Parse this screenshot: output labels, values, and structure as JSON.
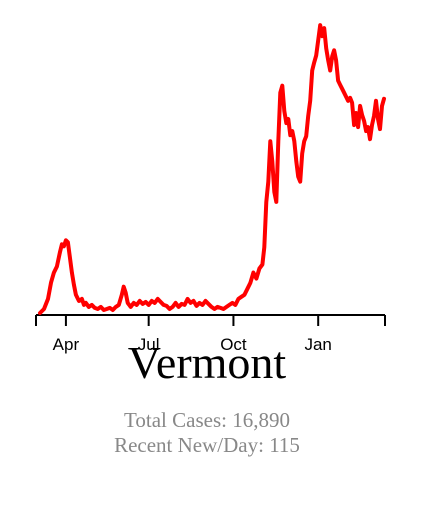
{
  "state": "Vermont",
  "stats": {
    "total_cases_label": "Total Cases:",
    "total_cases": "16,890",
    "recent_label": "Recent New/Day:",
    "recent_new_per_day": "115"
  },
  "colors": {
    "line": "#ff0000",
    "axis": "#000000",
    "stats_text": "#888888"
  },
  "chart_data": {
    "type": "line",
    "title": "",
    "xlabel": "",
    "ylabel": "",
    "x_range_days": [
      0,
      350
    ],
    "ylim": [
      0,
      290
    ],
    "grid": false,
    "y_axis_shown": false,
    "x_ticks": [
      {
        "label": "Apr",
        "day": 30
      },
      {
        "label": "Jul",
        "day": 113
      },
      {
        "label": "Oct",
        "day": 198
      },
      {
        "label": "Jan",
        "day": 283
      }
    ],
    "series": [
      {
        "values": [
          [
            4,
            0
          ],
          [
            8,
            4
          ],
          [
            12,
            14
          ],
          [
            15,
            30
          ],
          [
            18,
            40
          ],
          [
            21,
            46
          ],
          [
            24,
            60
          ],
          [
            26,
            68
          ],
          [
            28,
            66
          ],
          [
            30,
            72
          ],
          [
            32,
            70
          ],
          [
            34,
            55
          ],
          [
            36,
            40
          ],
          [
            38,
            28
          ],
          [
            40,
            18
          ],
          [
            43,
            12
          ],
          [
            46,
            14
          ],
          [
            48,
            8
          ],
          [
            50,
            10
          ],
          [
            53,
            6
          ],
          [
            56,
            8
          ],
          [
            59,
            5
          ],
          [
            62,
            4
          ],
          [
            65,
            6
          ],
          [
            68,
            3
          ],
          [
            71,
            4
          ],
          [
            74,
            5
          ],
          [
            77,
            3
          ],
          [
            80,
            6
          ],
          [
            83,
            8
          ],
          [
            86,
            18
          ],
          [
            88,
            26
          ],
          [
            90,
            20
          ],
          [
            92,
            10
          ],
          [
            95,
            6
          ],
          [
            98,
            10
          ],
          [
            101,
            8
          ],
          [
            104,
            12
          ],
          [
            107,
            9
          ],
          [
            110,
            11
          ],
          [
            113,
            8
          ],
          [
            116,
            12
          ],
          [
            119,
            10
          ],
          [
            122,
            14
          ],
          [
            125,
            11
          ],
          [
            128,
            8
          ],
          [
            131,
            7
          ],
          [
            134,
            4
          ],
          [
            137,
            6
          ],
          [
            140,
            10
          ],
          [
            143,
            6
          ],
          [
            146,
            9
          ],
          [
            149,
            8
          ],
          [
            152,
            14
          ],
          [
            155,
            10
          ],
          [
            158,
            12
          ],
          [
            161,
            7
          ],
          [
            164,
            10
          ],
          [
            167,
            8
          ],
          [
            170,
            12
          ],
          [
            173,
            9
          ],
          [
            176,
            6
          ],
          [
            179,
            4
          ],
          [
            182,
            6
          ],
          [
            185,
            5
          ],
          [
            188,
            4
          ],
          [
            191,
            6
          ],
          [
            194,
            8
          ],
          [
            197,
            10
          ],
          [
            200,
            8
          ],
          [
            203,
            14
          ],
          [
            206,
            16
          ],
          [
            209,
            18
          ],
          [
            212,
            24
          ],
          [
            215,
            30
          ],
          [
            218,
            40
          ],
          [
            221,
            34
          ],
          [
            224,
            44
          ],
          [
            227,
            48
          ],
          [
            229,
            65
          ],
          [
            231,
            110
          ],
          [
            233,
            130
          ],
          [
            235,
            170
          ],
          [
            237,
            150
          ],
          [
            239,
            120
          ],
          [
            241,
            110
          ],
          [
            243,
            170
          ],
          [
            245,
            218
          ],
          [
            247,
            225
          ],
          [
            249,
            200
          ],
          [
            251,
            188
          ],
          [
            253,
            192
          ],
          [
            255,
            176
          ],
          [
            257,
            180
          ],
          [
            259,
            170
          ],
          [
            261,
            150
          ],
          [
            263,
            135
          ],
          [
            265,
            130
          ],
          [
            267,
            158
          ],
          [
            269,
            170
          ],
          [
            271,
            175
          ],
          [
            273,
            195
          ],
          [
            275,
            210
          ],
          [
            277,
            240
          ],
          [
            279,
            248
          ],
          [
            281,
            255
          ],
          [
            283,
            270
          ],
          [
            285,
            285
          ],
          [
            287,
            274
          ],
          [
            289,
            282
          ],
          [
            291,
            262
          ],
          [
            293,
            250
          ],
          [
            295,
            240
          ],
          [
            297,
            254
          ],
          [
            299,
            260
          ],
          [
            301,
            250
          ],
          [
            303,
            230
          ],
          [
            305,
            226
          ],
          [
            307,
            222
          ],
          [
            309,
            218
          ],
          [
            311,
            214
          ],
          [
            313,
            210
          ],
          [
            315,
            213
          ],
          [
            317,
            208
          ],
          [
            319,
            186
          ],
          [
            321,
            198
          ],
          [
            323,
            184
          ],
          [
            325,
            205
          ],
          [
            327,
            196
          ],
          [
            329,
            190
          ],
          [
            331,
            180
          ],
          [
            333,
            184
          ],
          [
            335,
            172
          ],
          [
            337,
            186
          ],
          [
            339,
            195
          ],
          [
            341,
            210
          ],
          [
            343,
            192
          ],
          [
            345,
            182
          ],
          [
            347,
            205
          ],
          [
            349,
            212
          ]
        ]
      }
    ]
  }
}
